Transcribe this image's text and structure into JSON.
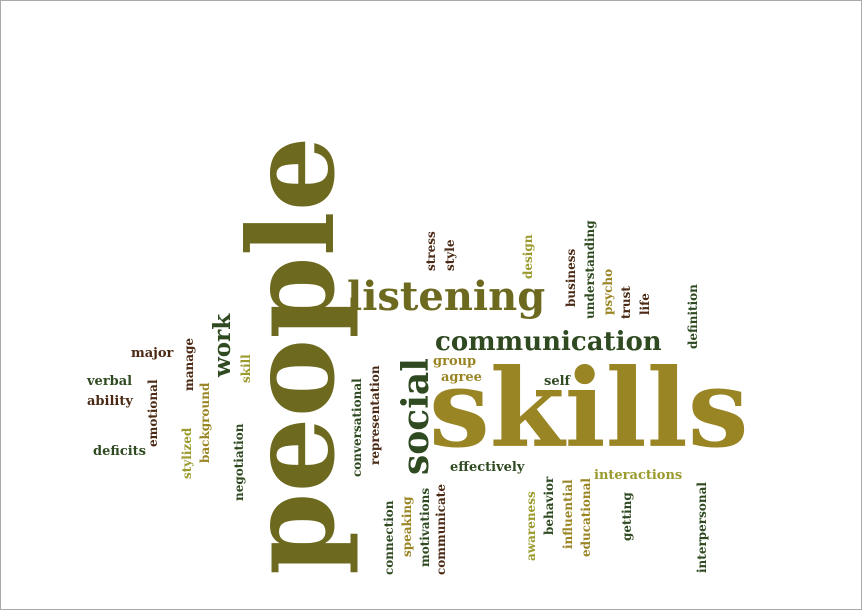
{
  "colors": {
    "olive": "#6d6a20",
    "dark_green": "#2f4a21",
    "gold": "#9a8525",
    "brown": "#4a2a14",
    "yellow_olive": "#9a9a2e"
  },
  "words": {
    "people": "people",
    "skills": "skills",
    "listening": "listening",
    "communication": "communication",
    "social": "social",
    "work": "work",
    "skill": "skill",
    "major": "major",
    "verbal": "verbal",
    "ability": "ability",
    "emotional": "emotional",
    "manage": "manage",
    "background": "background",
    "stylized": "stylized",
    "deficits": "deficits",
    "negotiation": "negotiation",
    "conversational": "conversational",
    "representation": "representation",
    "connection": "connection",
    "speaking": "speaking",
    "motivations": "motivations",
    "communicate": "communicate",
    "stress": "stress",
    "style": "style",
    "design": "design",
    "business": "business",
    "understanding": "understanding",
    "psycho": "psycho",
    "trust": "trust",
    "life": "life",
    "definition": "definition",
    "group": "group",
    "agree": "agree",
    "self": "self",
    "effectively": "effectively",
    "awareness": "awareness",
    "behavior": "behavior",
    "influential": "influential",
    "educational": "educational",
    "interactions": "interactions",
    "getting": "getting",
    "interpersonal": "interpersonal"
  }
}
